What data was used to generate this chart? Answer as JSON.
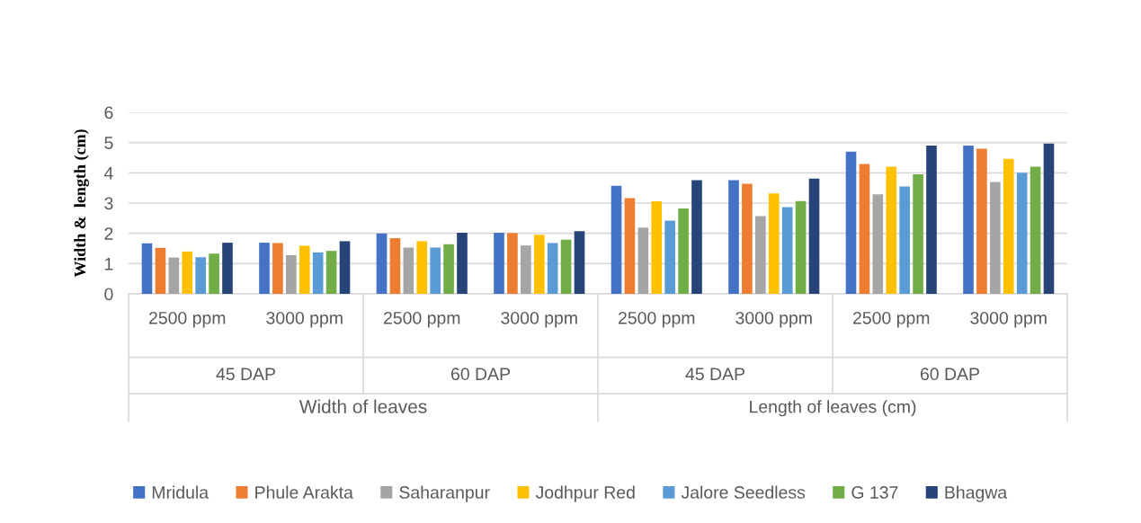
{
  "chart_data": {
    "type": "bar",
    "ylabel": "Width &  length (cm)",
    "categories": [
      "2500 ppm",
      "3000 ppm",
      "2500 ppm",
      "3000 ppm",
      "2500 ppm",
      "3000 ppm",
      "2500 ppm",
      "3000 ppm"
    ],
    "annotations": [
      "45 DAP",
      "60 DAP",
      "45 DAP",
      "60 DAP",
      "Width of leaves",
      "Length of leaves (cm)"
    ],
    "series": [
      {
        "name": "Mridula",
        "color": "#4472c4",
        "values": [
          1.67,
          1.69,
          2.0,
          2.02,
          3.57,
          3.76,
          4.7,
          4.9
        ]
      },
      {
        "name": "Phule Arakta",
        "color": "#ed7d31",
        "values": [
          1.52,
          1.68,
          1.84,
          2.01,
          3.16,
          3.64,
          4.29,
          4.8
        ]
      },
      {
        "name": "Saharanpur",
        "color": "#a5a5a5",
        "values": [
          1.2,
          1.28,
          1.53,
          1.6,
          2.19,
          2.57,
          3.29,
          3.7
        ]
      },
      {
        "name": "Jodhpur Red",
        "color": "#ffc000",
        "values": [
          1.4,
          1.59,
          1.74,
          1.95,
          3.06,
          3.32,
          4.2,
          4.46
        ]
      },
      {
        "name": "Jalore Seedless",
        "color": "#5b9bd5",
        "values": [
          1.21,
          1.37,
          1.53,
          1.68,
          2.42,
          2.87,
          3.55,
          4.0
        ]
      },
      {
        "name": "G 137",
        "color": "#70ad47",
        "values": [
          1.33,
          1.42,
          1.64,
          1.79,
          2.82,
          3.07,
          3.95,
          4.2
        ]
      },
      {
        "name": "Bhagwa",
        "color": "#264478",
        "values": [
          1.69,
          1.74,
          2.02,
          2.07,
          3.76,
          3.81,
          4.9,
          4.97
        ]
      }
    ],
    "ylim": [
      0,
      6
    ],
    "yticks": [
      0,
      1,
      2,
      3,
      4,
      5,
      6
    ],
    "grid": "y",
    "legend": "bottom"
  }
}
